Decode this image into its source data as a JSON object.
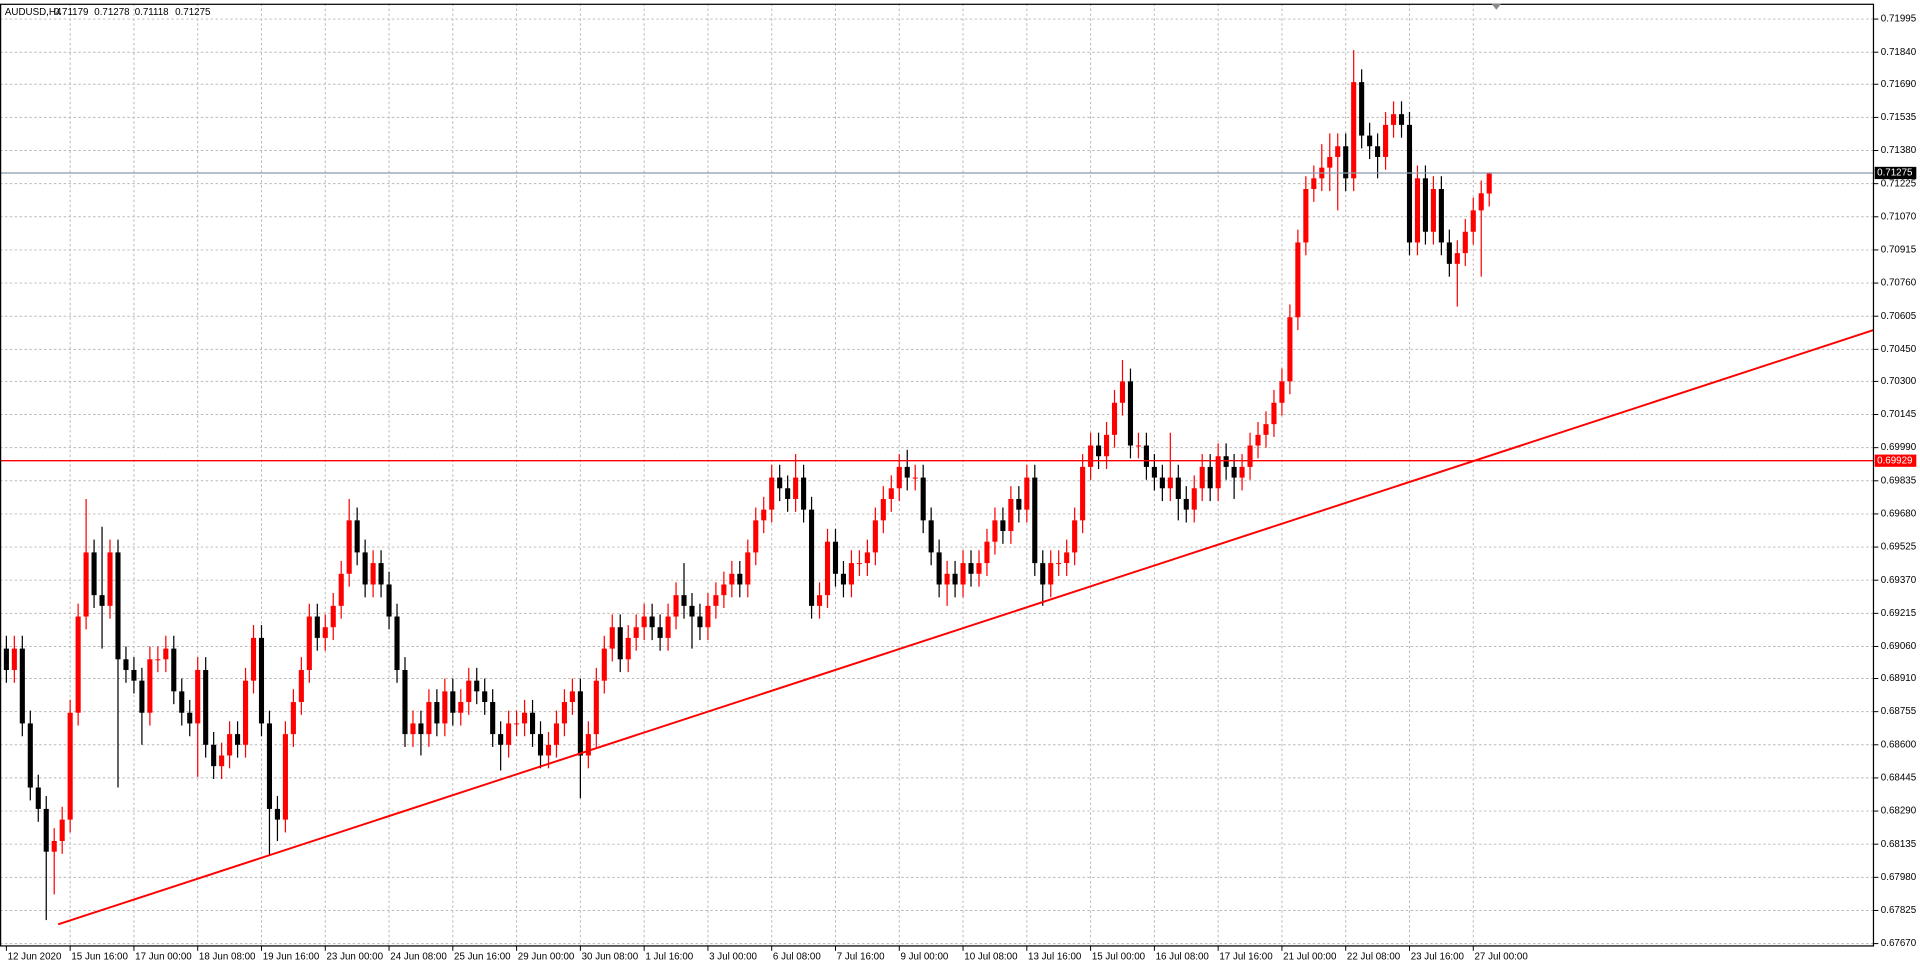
{
  "chart_data": {
    "type": "candlestick",
    "title": "AUDUSD,H4",
    "up_color": "#ff0000",
    "down_color": "#000000",
    "grid": true,
    "grid_color": "#b8b8b8",
    "xlim": [
      -0.8,
      234.2
    ],
    "ylim": [
      0.67659,
      0.72067
    ],
    "xticks": [
      {
        "value": 0,
        "label": "12 Jun 2020"
      },
      {
        "value": 8,
        "label": "15 Jun 16:00"
      },
      {
        "value": 16,
        "label": "17 Jun 00:00"
      },
      {
        "value": 24,
        "label": "18 Jun 08:00"
      },
      {
        "value": 32,
        "label": "19 Jun 16:00"
      },
      {
        "value": 40,
        "label": "23 Jun 00:00"
      },
      {
        "value": 48,
        "label": "24 Jun 08:00"
      },
      {
        "value": 56,
        "label": "25 Jun 16:00"
      },
      {
        "value": 64,
        "label": "29 Jun 00:00"
      },
      {
        "value": 72,
        "label": "30 Jun 08:00"
      },
      {
        "value": 80,
        "label": "1 Jul 16:00"
      },
      {
        "value": 88,
        "label": "3 Jul 00:00"
      },
      {
        "value": 96,
        "label": "6 Jul 08:00"
      },
      {
        "value": 104,
        "label": "7 Jul 16:00"
      },
      {
        "value": 112,
        "label": "9 Jul 00:00"
      },
      {
        "value": 120,
        "label": "10 Jul 08:00"
      },
      {
        "value": 128,
        "label": "13 Jul 16:00"
      },
      {
        "value": 136,
        "label": "15 Jul 00:00"
      },
      {
        "value": 144,
        "label": "16 Jul 08:00"
      },
      {
        "value": 152,
        "label": "17 Jul 16:00"
      },
      {
        "value": 160,
        "label": "21 Jul 00:00"
      },
      {
        "value": 168,
        "label": "22 Jul 08:00"
      },
      {
        "value": 176,
        "label": "23 Jul 16:00"
      },
      {
        "value": 184,
        "label": "27 Jul 00:00"
      }
    ],
    "yticks": [
      {
        "value": 0.71995,
        "label": "0.71995"
      },
      {
        "value": 0.7184,
        "label": "0.71840"
      },
      {
        "value": 0.7169,
        "label": "0.71690"
      },
      {
        "value": 0.71535,
        "label": "0.71535"
      },
      {
        "value": 0.7138,
        "label": "0.71380"
      },
      {
        "value": 0.71225,
        "label": "0.71225"
      },
      {
        "value": 0.7107,
        "label": "0.71070"
      },
      {
        "value": 0.70915,
        "label": "0.70915"
      },
      {
        "value": 0.7076,
        "label": "0.70760"
      },
      {
        "value": 0.70605,
        "label": "0.70605"
      },
      {
        "value": 0.7045,
        "label": "0.70450"
      },
      {
        "value": 0.703,
        "label": "0.70300"
      },
      {
        "value": 0.70145,
        "label": "0.70145"
      },
      {
        "value": 0.6999,
        "label": "0.69990"
      },
      {
        "value": 0.69835,
        "label": "0.69835"
      },
      {
        "value": 0.6968,
        "label": "0.69680"
      },
      {
        "value": 0.69525,
        "label": "0.69525"
      },
      {
        "value": 0.6937,
        "label": "0.69370"
      },
      {
        "value": 0.69215,
        "label": "0.69215"
      },
      {
        "value": 0.6906,
        "label": "0.69060"
      },
      {
        "value": 0.6891,
        "label": "0.68910"
      },
      {
        "value": 0.68755,
        "label": "0.68755"
      },
      {
        "value": 0.686,
        "label": "0.68600"
      },
      {
        "value": 0.68445,
        "label": "0.68445"
      },
      {
        "value": 0.6829,
        "label": "0.68290"
      },
      {
        "value": 0.68135,
        "label": "0.68135"
      },
      {
        "value": 0.6798,
        "label": "0.67980"
      },
      {
        "value": 0.67825,
        "label": "0.67825"
      },
      {
        "value": 0.6767,
        "label": "0.67670"
      }
    ],
    "hline": {
      "value": 0.69929,
      "color": "#ff0000"
    },
    "bid_line_color": "#8a9aab",
    "trendline": {
      "x": [
        6.5,
        234.2
      ],
      "y": [
        0.6776,
        0.7054
      ],
      "color": "#ff0000"
    },
    "open": [
      0.6905,
      0.6895,
      0.6905,
      0.687,
      0.684,
      0.683,
      0.681,
      0.6815,
      0.6825,
      0.6875,
      0.692,
      0.695,
      0.693,
      0.6925,
      0.695,
      0.69,
      0.6895,
      0.689,
      0.6875,
      0.69,
      0.69,
      0.6905,
      0.6885,
      0.6875,
      0.687,
      0.6895,
      0.686,
      0.685,
      0.6855,
      0.6865,
      0.686,
      0.689,
      0.691,
      0.687,
      0.683,
      0.6825,
      0.6865,
      0.688,
      0.6895,
      0.692,
      0.691,
      0.6915,
      0.6925,
      0.694,
      0.6965,
      0.695,
      0.6935,
      0.6945,
      0.6935,
      0.692,
      0.6895,
      0.6865,
      0.687,
      0.6865,
      0.688,
      0.687,
      0.6885,
      0.6875,
      0.688,
      0.689,
      0.6885,
      0.688,
      0.6865,
      0.686,
      0.687,
      0.687,
      0.6875,
      0.6865,
      0.6855,
      0.686,
      0.687,
      0.688,
      0.6885,
      0.6855,
      0.6865,
      0.689,
      0.6905,
      0.6915,
      0.69,
      0.691,
      0.6915,
      0.692,
      0.6915,
      0.691,
      0.692,
      0.693,
      0.6925,
      0.692,
      0.6915,
      0.6925,
      0.693,
      0.6935,
      0.694,
      0.6935,
      0.695,
      0.6965,
      0.697,
      0.6985,
      0.698,
      0.6975,
      0.6985,
      0.697,
      0.6925,
      0.693,
      0.6955,
      0.694,
      0.6935,
      0.6945,
      0.6945,
      0.695,
      0.6965,
      0.6975,
      0.698,
      0.699,
      0.6985,
      0.6985,
      0.6965,
      0.695,
      0.6935,
      0.694,
      0.6935,
      0.6945,
      0.694,
      0.6945,
      0.6955,
      0.6965,
      0.696,
      0.6975,
      0.697,
      0.6985,
      0.6945,
      0.6935,
      0.6945,
      0.6945,
      0.695,
      0.6965,
      0.699,
      0.7,
      0.6995,
      0.7005,
      0.702,
      0.703,
      0.7,
      0.7,
      0.699,
      0.6985,
      0.698,
      0.6985,
      0.6975,
      0.697,
      0.698,
      0.699,
      0.698,
      0.6995,
      0.699,
      0.6985,
      0.699,
      0.7,
      0.7005,
      0.701,
      0.702,
      0.703,
      0.706,
      0.7095,
      0.712,
      0.7125,
      0.713,
      0.7135,
      0.714,
      0.7125,
      0.717,
      0.7145,
      0.714,
      0.7135,
      0.715,
      0.7155,
      0.715,
      0.7095,
      0.7125,
      0.71,
      0.712,
      0.7095,
      0.7085,
      0.709,
      0.71,
      0.711,
      0.71179
    ],
    "high": [
      0.6911,
      0.6911,
      0.6911,
      0.6876,
      0.6846,
      0.6836,
      0.6821,
      0.6831,
      0.6881,
      0.6926,
      0.6975,
      0.6956,
      0.6962,
      0.6956,
      0.6956,
      0.6906,
      0.6901,
      0.6896,
      0.6906,
      0.6906,
      0.6911,
      0.6911,
      0.6891,
      0.6881,
      0.6901,
      0.6901,
      0.6866,
      0.6861,
      0.6871,
      0.6871,
      0.6896,
      0.6916,
      0.6916,
      0.6876,
      0.6836,
      0.6871,
      0.6886,
      0.6901,
      0.6926,
      0.6926,
      0.6921,
      0.6931,
      0.6946,
      0.6975,
      0.6971,
      0.6956,
      0.6951,
      0.6951,
      0.6941,
      0.6926,
      0.6901,
      0.6876,
      0.6876,
      0.6886,
      0.6886,
      0.6891,
      0.6891,
      0.6886,
      0.6896,
      0.6896,
      0.6891,
      0.6886,
      0.6871,
      0.6876,
      0.6876,
      0.6881,
      0.6881,
      0.6871,
      0.6866,
      0.6876,
      0.6886,
      0.6891,
      0.6891,
      0.6871,
      0.6896,
      0.6911,
      0.6921,
      0.6921,
      0.6916,
      0.6921,
      0.6926,
      0.6926,
      0.6921,
      0.6926,
      0.6936,
      0.6945,
      0.6931,
      0.6926,
      0.6931,
      0.6936,
      0.6941,
      0.6946,
      0.6946,
      0.6956,
      0.6971,
      0.6976,
      0.6991,
      0.6991,
      0.6986,
      0.6996,
      0.6991,
      0.6976,
      0.6936,
      0.6961,
      0.6961,
      0.6946,
      0.6951,
      0.6951,
      0.6956,
      0.6971,
      0.6981,
      0.6986,
      0.6996,
      0.6998,
      0.6991,
      0.6991,
      0.6971,
      0.6956,
      0.6946,
      0.6946,
      0.6951,
      0.6951,
      0.6951,
      0.6961,
      0.6971,
      0.6971,
      0.6981,
      0.6981,
      0.6991,
      0.6991,
      0.6951,
      0.6951,
      0.6951,
      0.6956,
      0.6971,
      0.6996,
      0.7006,
      0.7006,
      0.7011,
      0.7026,
      0.704,
      0.7036,
      0.7006,
      0.7006,
      0.6996,
      0.6991,
      0.7006,
      0.6991,
      0.6981,
      0.6986,
      0.6996,
      0.6996,
      0.7001,
      0.7001,
      0.6996,
      0.6996,
      0.7006,
      0.7011,
      0.7016,
      0.7026,
      0.7036,
      0.7066,
      0.7101,
      0.7126,
      0.7131,
      0.7141,
      0.7146,
      0.7146,
      0.7146,
      0.7185,
      0.7176,
      0.7151,
      0.7146,
      0.7156,
      0.7161,
      0.7161,
      0.7156,
      0.7131,
      0.7131,
      0.7126,
      0.7126,
      0.7101,
      0.7096,
      0.7106,
      0.7116,
      0.7124,
      0.71278
    ],
    "low": [
      0.6889,
      0.6889,
      0.6864,
      0.6834,
      0.6824,
      0.6778,
      0.679,
      0.6809,
      0.6819,
      0.6869,
      0.6914,
      0.6924,
      0.6905,
      0.6919,
      0.684,
      0.6889,
      0.6884,
      0.686,
      0.6869,
      0.6894,
      0.6894,
      0.6879,
      0.6869,
      0.6864,
      0.6845,
      0.6854,
      0.6844,
      0.6844,
      0.6849,
      0.6854,
      0.6854,
      0.6884,
      0.6864,
      0.6808,
      0.6815,
      0.6819,
      0.6859,
      0.6874,
      0.6889,
      0.6904,
      0.6904,
      0.6909,
      0.6919,
      0.6934,
      0.6944,
      0.6929,
      0.6929,
      0.6929,
      0.6914,
      0.6889,
      0.6859,
      0.6859,
      0.6855,
      0.6859,
      0.6864,
      0.6864,
      0.6869,
      0.6869,
      0.6874,
      0.6879,
      0.6874,
      0.6859,
      0.6848,
      0.6854,
      0.6864,
      0.6864,
      0.6859,
      0.6849,
      0.6849,
      0.6854,
      0.6864,
      0.6874,
      0.6835,
      0.6849,
      0.6859,
      0.6884,
      0.6899,
      0.6894,
      0.6894,
      0.6904,
      0.6909,
      0.6909,
      0.6904,
      0.6904,
      0.6914,
      0.6919,
      0.6905,
      0.6909,
      0.6909,
      0.6919,
      0.6924,
      0.6929,
      0.6929,
      0.6929,
      0.6944,
      0.6959,
      0.6964,
      0.6974,
      0.6969,
      0.6969,
      0.6964,
      0.6919,
      0.6919,
      0.6924,
      0.6934,
      0.6929,
      0.6929,
      0.6939,
      0.6939,
      0.6944,
      0.6959,
      0.6969,
      0.6974,
      0.6979,
      0.6979,
      0.6959,
      0.6944,
      0.6929,
      0.6925,
      0.6929,
      0.6929,
      0.6934,
      0.6934,
      0.6939,
      0.6949,
      0.6954,
      0.6954,
      0.6964,
      0.6964,
      0.6939,
      0.6925,
      0.6929,
      0.6939,
      0.6939,
      0.6944,
      0.6959,
      0.6984,
      0.6989,
      0.6989,
      0.6999,
      0.7014,
      0.6994,
      0.6994,
      0.6984,
      0.6979,
      0.6974,
      0.6974,
      0.6965,
      0.6964,
      0.6964,
      0.6974,
      0.6974,
      0.6974,
      0.6984,
      0.6975,
      0.6979,
      0.6984,
      0.6994,
      0.6999,
      0.7004,
      0.7014,
      0.7024,
      0.7054,
      0.7089,
      0.7114,
      0.7119,
      0.7119,
      0.711,
      0.7119,
      0.7119,
      0.7139,
      0.7134,
      0.7125,
      0.7129,
      0.7144,
      0.7144,
      0.7089,
      0.7089,
      0.7094,
      0.7094,
      0.7089,
      0.7079,
      0.7065,
      0.7084,
      0.7094,
      0.7079,
      0.71118
    ],
    "close": [
      0.6895,
      0.6905,
      0.687,
      0.684,
      0.683,
      0.681,
      0.6815,
      0.6825,
      0.6875,
      0.692,
      0.695,
      0.693,
      0.6925,
      0.695,
      0.69,
      0.6895,
      0.689,
      0.6875,
      0.69,
      0.69,
      0.6905,
      0.6885,
      0.6875,
      0.687,
      0.6895,
      0.686,
      0.685,
      0.6855,
      0.6865,
      0.686,
      0.689,
      0.691,
      0.687,
      0.683,
      0.6825,
      0.6865,
      0.688,
      0.6895,
      0.692,
      0.691,
      0.6915,
      0.6925,
      0.694,
      0.6965,
      0.695,
      0.6935,
      0.6945,
      0.6935,
      0.692,
      0.6895,
      0.6865,
      0.687,
      0.6865,
      0.688,
      0.687,
      0.6885,
      0.6875,
      0.688,
      0.689,
      0.6885,
      0.688,
      0.6865,
      0.686,
      0.687,
      0.687,
      0.6875,
      0.6865,
      0.6855,
      0.686,
      0.687,
      0.688,
      0.6885,
      0.6855,
      0.6865,
      0.689,
      0.6905,
      0.6915,
      0.69,
      0.691,
      0.6915,
      0.692,
      0.6915,
      0.691,
      0.692,
      0.693,
      0.6925,
      0.692,
      0.6915,
      0.6925,
      0.693,
      0.6935,
      0.694,
      0.6935,
      0.695,
      0.6965,
      0.697,
      0.6985,
      0.698,
      0.6975,
      0.6985,
      0.697,
      0.6925,
      0.693,
      0.6955,
      0.694,
      0.6935,
      0.6945,
      0.6945,
      0.695,
      0.6965,
      0.6975,
      0.698,
      0.699,
      0.6985,
      0.6985,
      0.6965,
      0.695,
      0.6935,
      0.694,
      0.6935,
      0.6945,
      0.694,
      0.6945,
      0.6955,
      0.6965,
      0.696,
      0.6975,
      0.697,
      0.6985,
      0.6945,
      0.6935,
      0.6945,
      0.6945,
      0.695,
      0.6965,
      0.699,
      0.7,
      0.6995,
      0.7005,
      0.702,
      0.703,
      0.7,
      0.7,
      0.699,
      0.6985,
      0.698,
      0.6985,
      0.6975,
      0.697,
      0.698,
      0.699,
      0.698,
      0.6995,
      0.699,
      0.6985,
      0.699,
      0.7,
      0.7005,
      0.701,
      0.702,
      0.703,
      0.706,
      0.7095,
      0.712,
      0.7125,
      0.713,
      0.7135,
      0.714,
      0.7125,
      0.717,
      0.7145,
      0.714,
      0.7135,
      0.715,
      0.7155,
      0.715,
      0.7095,
      0.7125,
      0.71,
      0.712,
      0.7095,
      0.7085,
      0.709,
      0.71,
      0.711,
      0.7118,
      0.71275
    ]
  }
}
